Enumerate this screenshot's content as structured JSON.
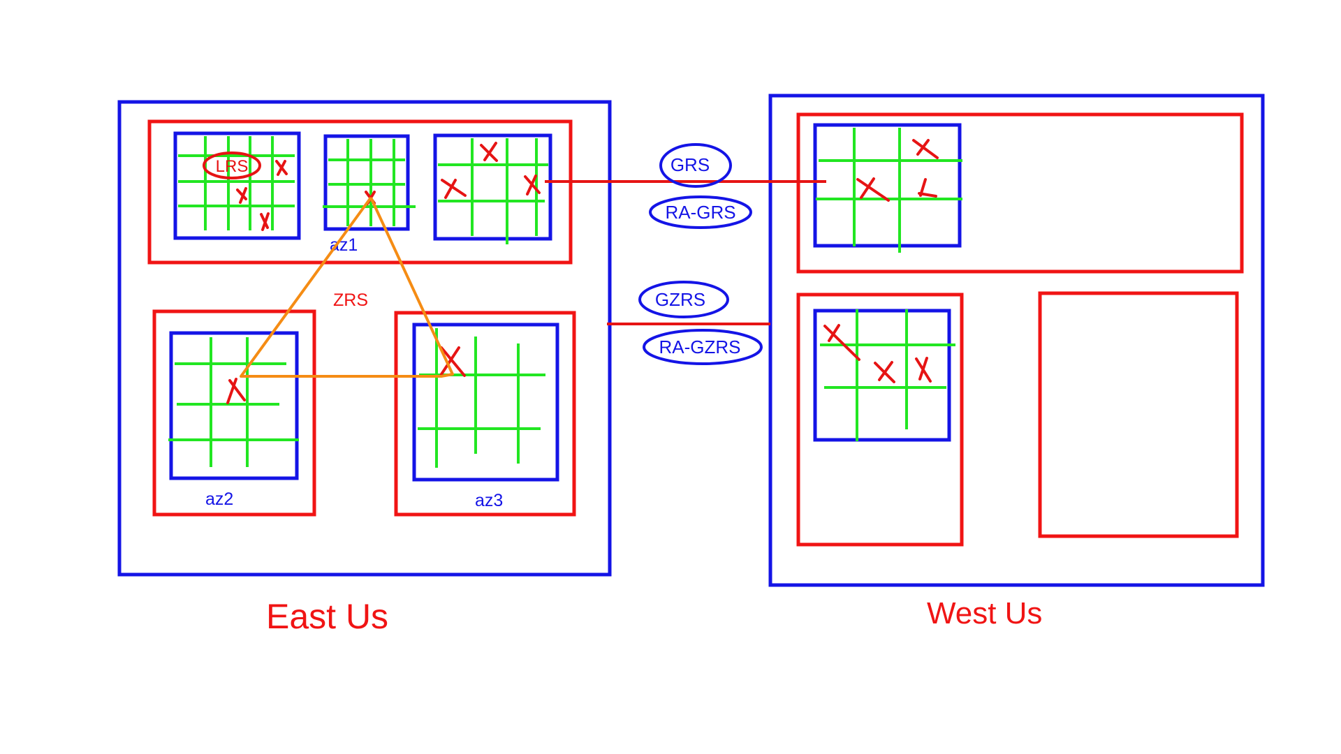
{
  "colors": {
    "region_border": "#1414e6",
    "zone_border": "#f01414",
    "grid": "#22e622",
    "failure_mark": "#e61414",
    "zrs_path": "#f58c14",
    "replication_link": "#e61414",
    "redundancy_label": "#1414e6",
    "region_label": "#f01414",
    "zrs_label": "#f01414",
    "zone_label": "#1414e6"
  },
  "regions": {
    "east": {
      "label": "East Us",
      "zones": {
        "az1": "az1",
        "az2": "az2",
        "az3": "az3"
      },
      "lrs_label": "LRS",
      "zrs_label": "ZRS"
    },
    "west": {
      "label": "West Us"
    }
  },
  "replication": {
    "grs": "GRS",
    "ra_grs": "RA-GRS",
    "gzrs": "GZRS",
    "ra_gzrs": "RA-GZRS"
  },
  "icons": {
    "failure_mark": "cross-mark-icon"
  }
}
